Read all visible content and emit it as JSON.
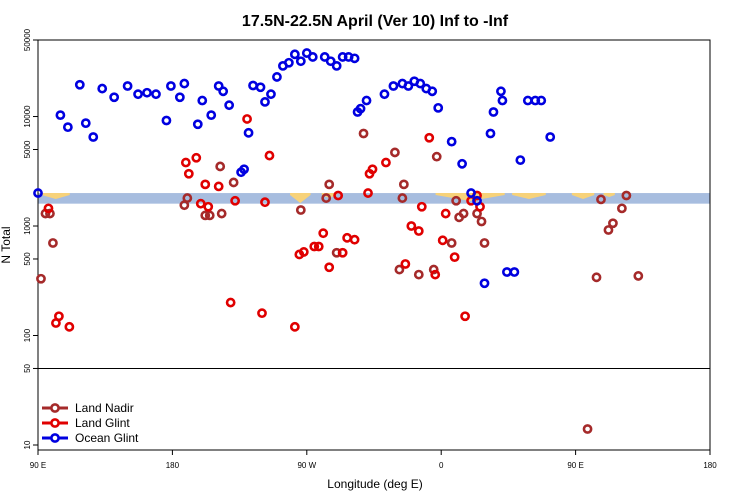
{
  "chart_data": {
    "type": "scatter",
    "title": "17.5N-22.5N April (Ver 10)   Inf to -Inf",
    "xlabel": "Longitude (deg E)",
    "ylabel": "N Total",
    "y_scale": "log",
    "ylim": [
      9,
      50000
    ],
    "x_ticks": [
      "90 E",
      "180",
      "90 W",
      "0",
      "90 E",
      "180"
    ],
    "y_ticks": [
      "10",
      "50",
      "100",
      "500",
      "1000",
      "5000",
      "10000",
      "50000"
    ],
    "y_tick_values": [
      10,
      50,
      100,
      500,
      1000,
      5000,
      10000,
      50000
    ],
    "reference_line_y": 50,
    "band": {
      "y_low": 1600,
      "y_high": 2000,
      "color": "#a7bddf",
      "highlight_color": "#f7d27a"
    },
    "legend": {
      "position": "bottom-left",
      "entries": [
        "Land Nadir",
        "Land Glint",
        "Ocean Glint"
      ]
    },
    "series": [
      {
        "name": "Land Nadir",
        "color": "#a52a2a",
        "points": [
          [
            92,
            330
          ],
          [
            95,
            1300
          ],
          [
            98,
            1300
          ],
          [
            100,
            700
          ],
          [
            188,
            1550
          ],
          [
            190,
            1800
          ],
          [
            202,
            1250
          ],
          [
            205,
            1250
          ],
          [
            212,
            3500
          ],
          [
            213,
            1300
          ],
          [
            221,
            2500
          ],
          [
            266,
            1400
          ],
          [
            283,
            1800
          ],
          [
            285,
            2400
          ],
          [
            290,
            570
          ],
          [
            308,
            7000
          ],
          [
            329,
            4700
          ],
          [
            332,
            400
          ],
          [
            334,
            1800
          ],
          [
            335,
            2400
          ],
          [
            345,
            360
          ],
          [
            355,
            400
          ],
          [
            357,
            4300
          ],
          [
            367,
            700
          ],
          [
            370,
            1700
          ],
          [
            372,
            1200
          ],
          [
            375,
            1300
          ],
          [
            384,
            1300
          ],
          [
            387,
            1100
          ],
          [
            389,
            700
          ],
          [
            458,
            14
          ],
          [
            464,
            340
          ],
          [
            467,
            1750
          ],
          [
            472,
            920
          ],
          [
            475,
            1060
          ],
          [
            481,
            1450
          ],
          [
            484,
            1900
          ],
          [
            492,
            350
          ]
        ],
        "missing_x": [
          149,
          153,
          160
        ]
      },
      {
        "name": "Land Glint",
        "color": "#e00000",
        "points": [
          [
            97,
            1450
          ],
          [
            102,
            130
          ],
          [
            104,
            150
          ],
          [
            111,
            120
          ],
          [
            189,
            3800
          ],
          [
            191,
            3000
          ],
          [
            196,
            4200
          ],
          [
            199,
            1600
          ],
          [
            202,
            2400
          ],
          [
            204,
            1500
          ],
          [
            211,
            2300
          ],
          [
            219,
            200
          ],
          [
            222,
            1700
          ],
          [
            230,
            9500
          ],
          [
            240,
            160
          ],
          [
            242,
            1650
          ],
          [
            245,
            4400
          ],
          [
            262,
            120
          ],
          [
            265,
            550
          ],
          [
            268,
            580
          ],
          [
            275,
            650
          ],
          [
            278,
            650
          ],
          [
            281,
            860
          ],
          [
            285,
            420
          ],
          [
            291,
            1900
          ],
          [
            294,
            570
          ],
          [
            297,
            780
          ],
          [
            302,
            750
          ],
          [
            311,
            2000
          ],
          [
            312,
            3000
          ],
          [
            314,
            3300
          ],
          [
            323,
            3800
          ],
          [
            336,
            450
          ],
          [
            340,
            1000
          ],
          [
            345,
            900
          ],
          [
            347,
            1500
          ],
          [
            352,
            6400
          ],
          [
            356,
            360
          ],
          [
            361,
            740
          ],
          [
            363,
            1300
          ],
          [
            369,
            520
          ],
          [
            376,
            150
          ],
          [
            380,
            1700
          ],
          [
            384,
            1900
          ],
          [
            386,
            1500
          ]
        ],
        "missing_x": [
          133,
          170
        ]
      },
      {
        "name": "Ocean Glint",
        "color": "#0000e0",
        "points": [
          [
            90,
            2000
          ],
          [
            105,
            10300
          ],
          [
            110,
            8000
          ],
          [
            118,
            19500
          ],
          [
            122,
            8700
          ],
          [
            127,
            6500
          ],
          [
            133,
            18000
          ],
          [
            141,
            15000
          ],
          [
            150,
            19000
          ],
          [
            157,
            16000
          ],
          [
            163,
            16500
          ],
          [
            169,
            16000
          ],
          [
            176,
            9200
          ],
          [
            179,
            19000
          ],
          [
            185,
            15000
          ],
          [
            188,
            20000
          ],
          [
            197,
            8500
          ],
          [
            200,
            14000
          ],
          [
            206,
            10300
          ],
          [
            211,
            19000
          ],
          [
            214,
            17000
          ],
          [
            218,
            12700
          ],
          [
            226,
            3100
          ],
          [
            228,
            3300
          ],
          [
            231,
            7100
          ],
          [
            234,
            19200
          ],
          [
            239,
            18500
          ],
          [
            242,
            13600
          ],
          [
            246,
            16000
          ],
          [
            250,
            23000
          ],
          [
            254,
            29000
          ],
          [
            258,
            31000
          ],
          [
            262,
            37000
          ],
          [
            266,
            32000
          ],
          [
            270,
            38000
          ],
          [
            274,
            35000
          ],
          [
            282,
            35000
          ],
          [
            286,
            32000
          ],
          [
            290,
            29000
          ],
          [
            294,
            35000
          ],
          [
            298,
            35000
          ],
          [
            302,
            34000
          ],
          [
            304,
            11000
          ],
          [
            306,
            11800
          ],
          [
            310,
            14000
          ],
          [
            322,
            16000
          ],
          [
            328,
            19000
          ],
          [
            334,
            20000
          ],
          [
            338,
            19000
          ],
          [
            342,
            21000
          ],
          [
            346,
            20000
          ],
          [
            350,
            18000
          ],
          [
            354,
            17000
          ],
          [
            358,
            12000
          ],
          [
            367,
            5900
          ],
          [
            374,
            3700
          ],
          [
            380,
            2000
          ],
          [
            384,
            1700
          ],
          [
            389,
            300
          ],
          [
            393,
            7000
          ],
          [
            395,
            11000
          ],
          [
            400,
            17000
          ],
          [
            401,
            14000
          ],
          [
            404,
            380
          ],
          [
            409,
            380
          ],
          [
            413,
            4000
          ],
          [
            418,
            14000
          ],
          [
            423,
            14000
          ],
          [
            427,
            14000
          ],
          [
            433,
            6500
          ]
        ],
        "missing_x": []
      }
    ]
  }
}
